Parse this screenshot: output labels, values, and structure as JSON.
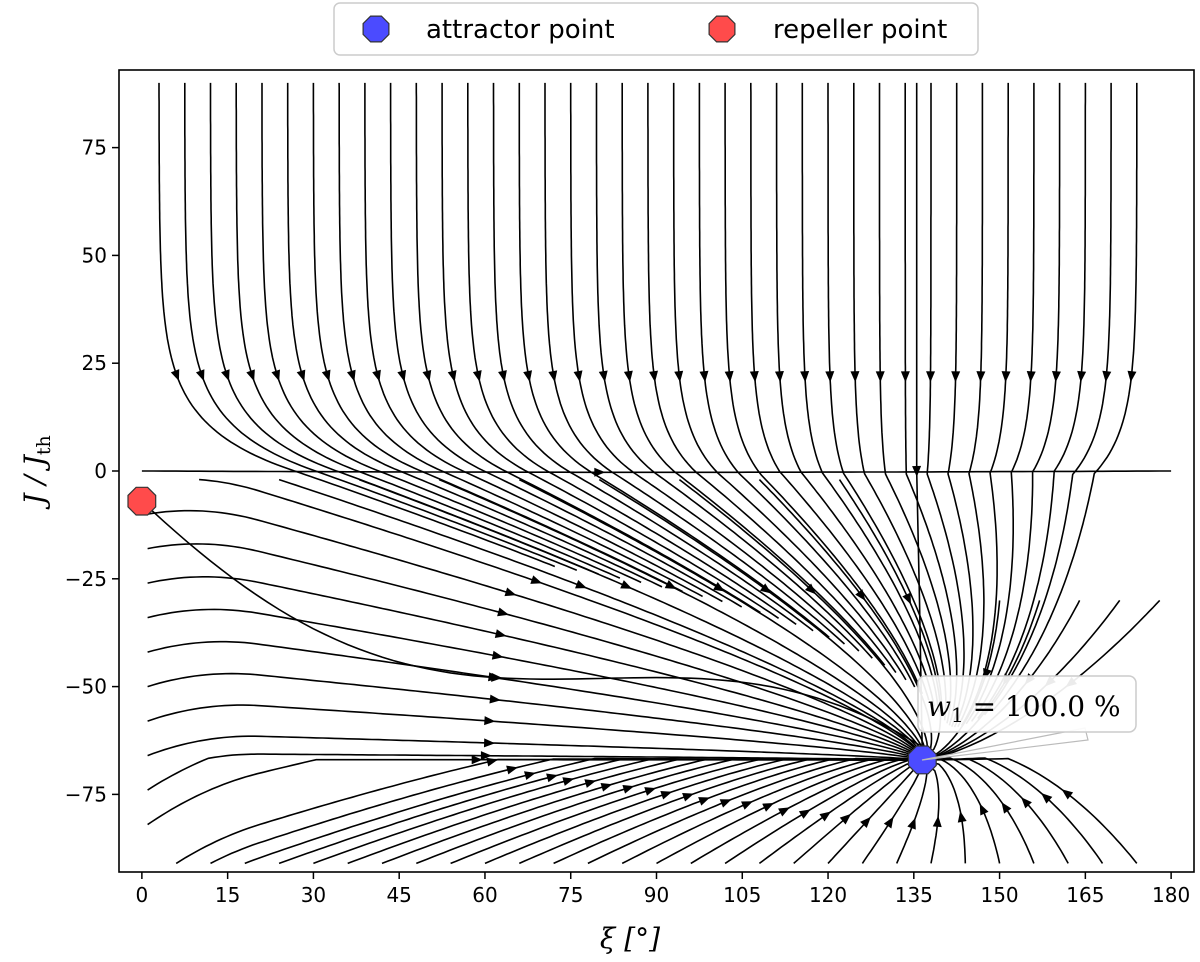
{
  "chart_data": {
    "type": "streamplot",
    "title": "",
    "xlabel": "ξ [°]",
    "ylabel": "J / J_th",
    "xlim": [
      -4,
      184
    ],
    "ylim": [
      -93,
      93
    ],
    "x_ticks": [
      0,
      15,
      30,
      45,
      60,
      75,
      90,
      105,
      120,
      135,
      150,
      165,
      180
    ],
    "y_ticks": [
      -75,
      -50,
      -25,
      0,
      25,
      50,
      75
    ],
    "grid": false,
    "legend": {
      "placement": "top-center, above plot",
      "entries": [
        {
          "label": "attractor point",
          "color": "#4b4bff"
        },
        {
          "label": "repeller point",
          "color": "#ff4b4b"
        }
      ]
    },
    "fixed_points": [
      {
        "kind": "attractor",
        "x": 136.5,
        "y": -67,
        "color": "#4b4bff"
      },
      {
        "kind": "repeller",
        "x": 0,
        "y": -7,
        "color": "#ff4b4b"
      }
    ],
    "annotation": {
      "symbol": "w",
      "subscript": "1",
      "text": " = 100.0 %",
      "target": "attractor point"
    },
    "stream_color": "#000000"
  }
}
